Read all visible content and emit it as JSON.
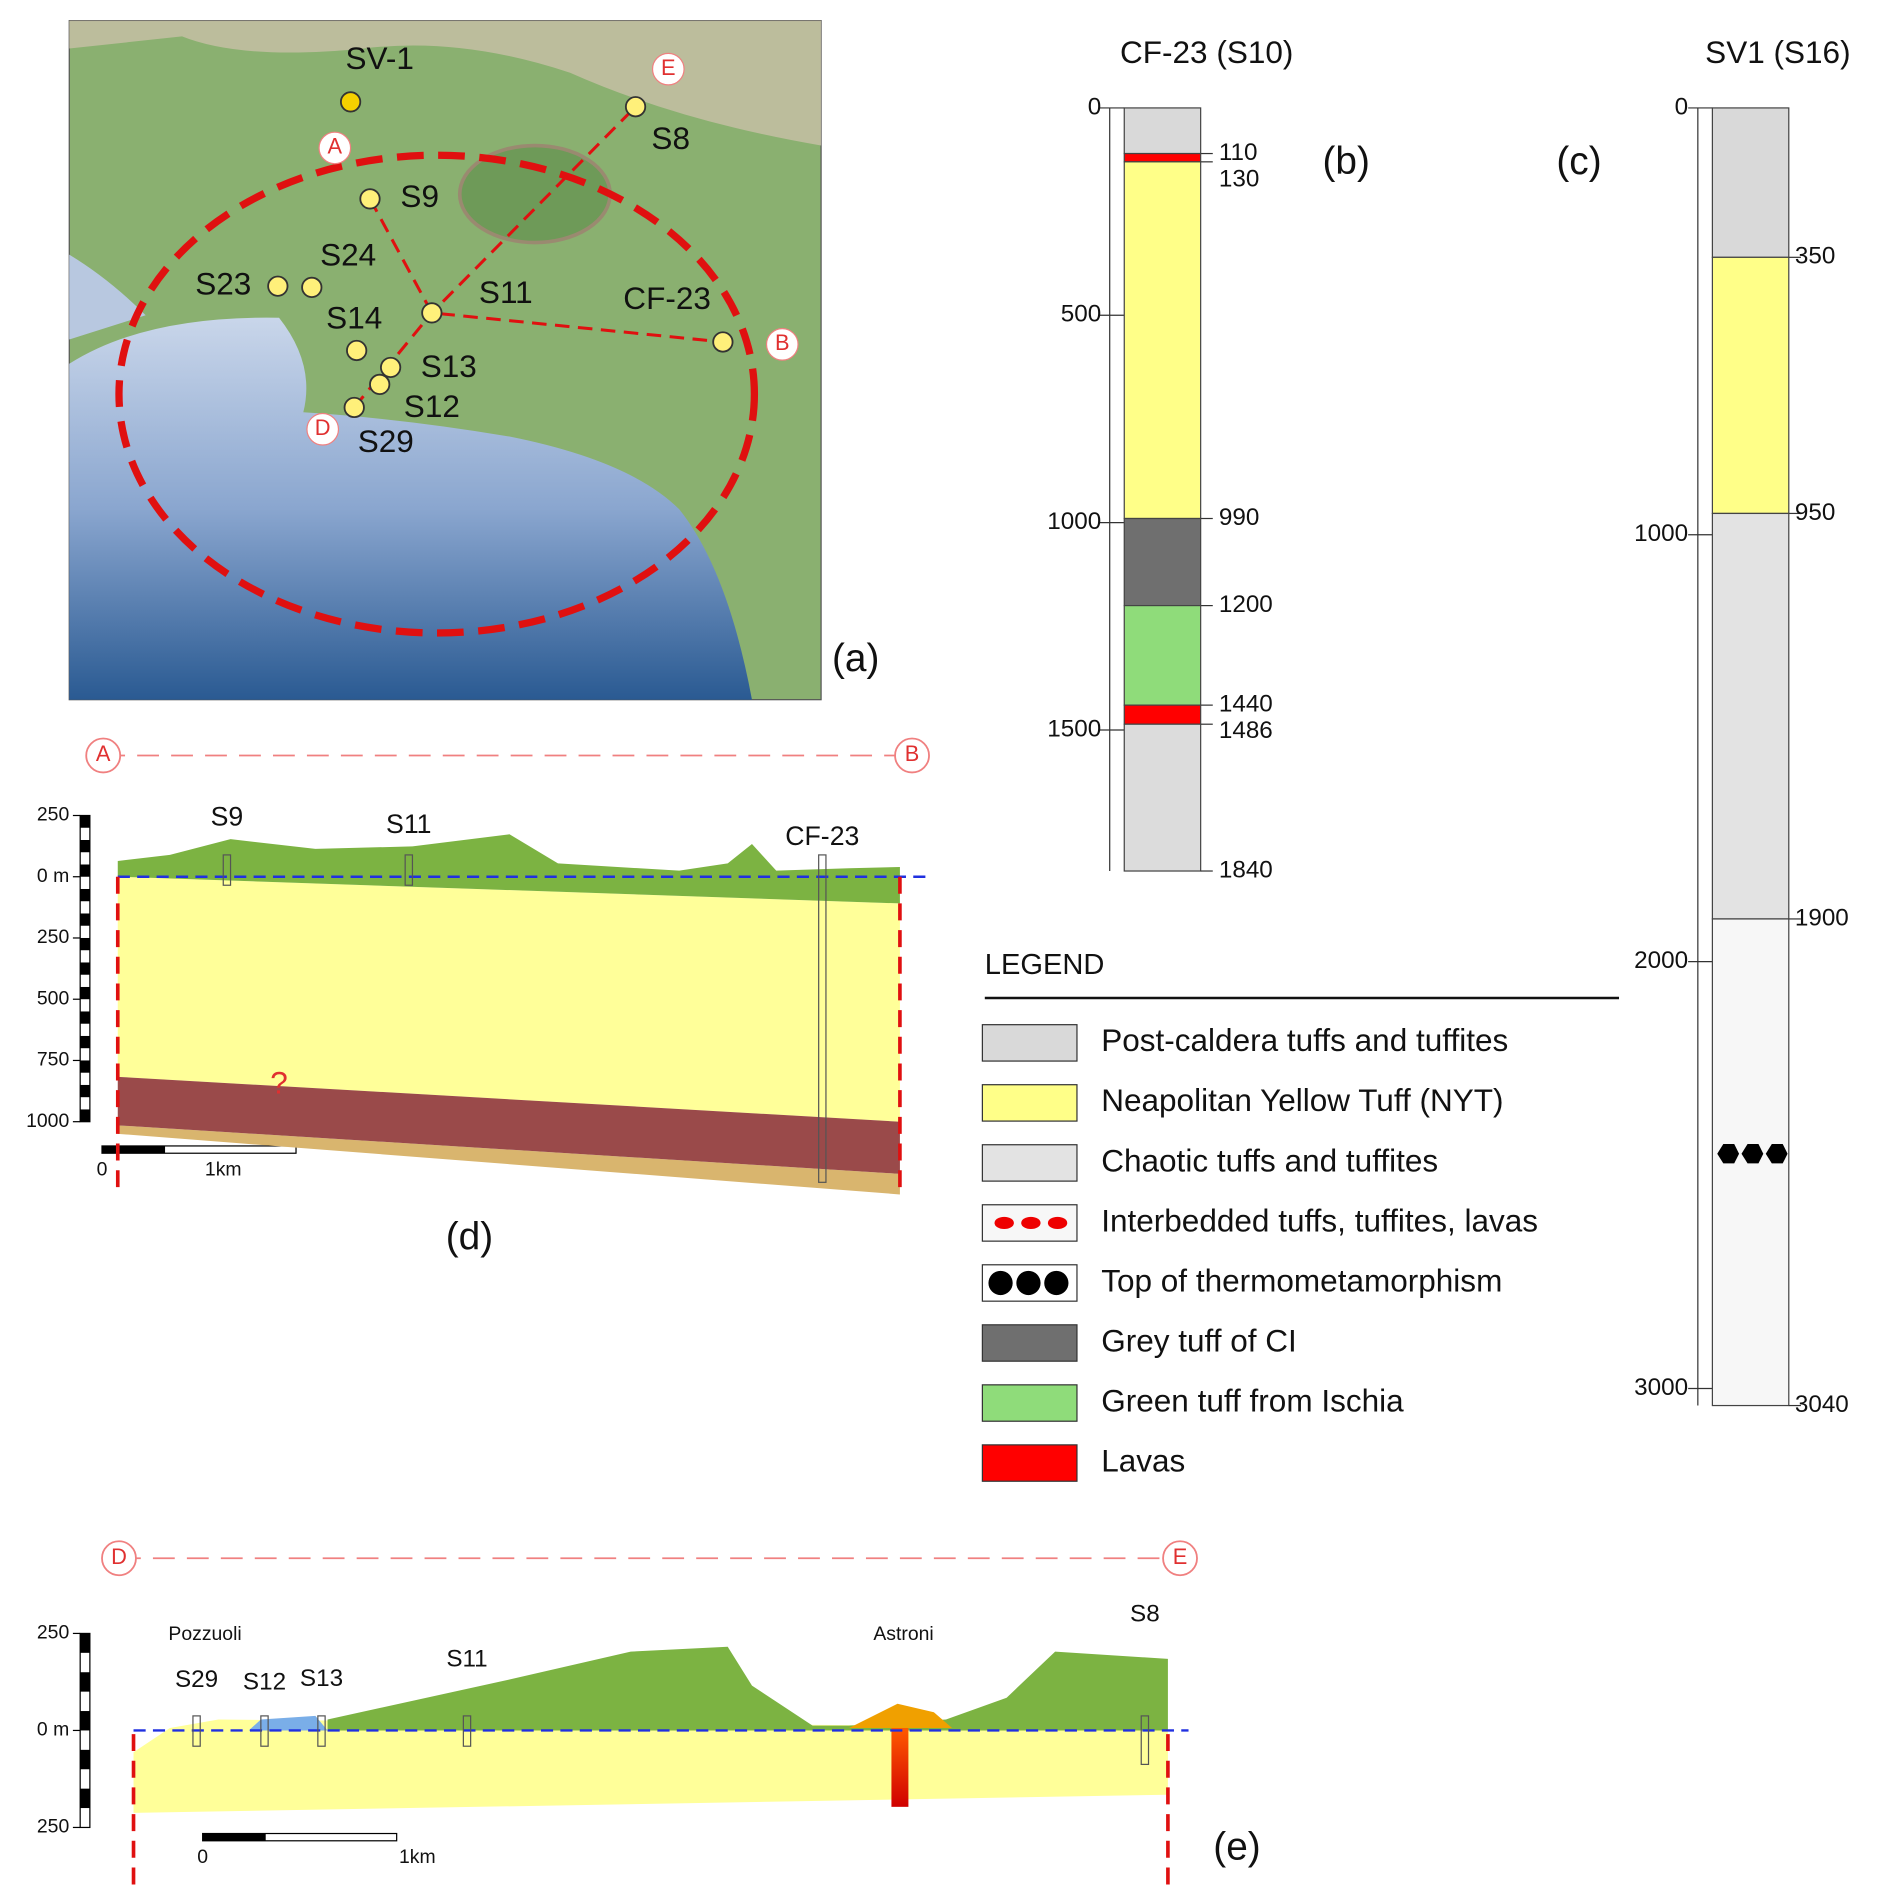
{
  "map": {
    "panel": "(a)",
    "wells": [
      "SV-1",
      "S8",
      "S9",
      "S24",
      "S23",
      "S11",
      "CF-23",
      "S14",
      "S13",
      "S12",
      "S29"
    ],
    "section_points": [
      "A",
      "B",
      "D",
      "E"
    ]
  },
  "log_b": {
    "panel": "(b)",
    "title": "CF-23 (S10)",
    "ylim": [
      0,
      1840
    ],
    "yticks": [
      0,
      500,
      1000,
      1500
    ],
    "boundaries": [
      110,
      130,
      990,
      1200,
      1440,
      1486,
      1840
    ],
    "colors": [
      "#d9d9d9",
      "#ff0000",
      "#ffff88",
      "#6f6f6f",
      "#8fdc7a",
      "#ff0000",
      "#dcdcdc"
    ]
  },
  "log_c": {
    "panel": "(c)",
    "title": "SV1 (S16)",
    "ylim": [
      0,
      3040
    ],
    "yticks": [
      0,
      1000,
      2000,
      3000
    ],
    "boundaries": [
      350,
      950,
      1900,
      3040
    ],
    "colors": [
      "#d9d9d9",
      "#ffff88",
      "#e3e3e3",
      "#f7f7f7"
    ]
  },
  "legend": {
    "title": "LEGEND",
    "items": [
      {
        "label": "Post-caldera tuffs and tuffites",
        "color": "#d9d9d9"
      },
      {
        "label": "Neapolitan Yellow Tuff (NYT)",
        "color": "#ffff88"
      },
      {
        "label": "Chaotic tuffs and tuffites",
        "color": "#e3e3e3"
      },
      {
        "label": "Interbedded tuffs, tuffites, lavas",
        "color": "#f7f7f7"
      },
      {
        "label": "Top of thermometamorphism",
        "color": "#ffffff"
      },
      {
        "label": "Grey tuff of CI",
        "color": "#6f6f6f"
      },
      {
        "label": "Green tuff from Ischia",
        "color": "#8fdc7a"
      },
      {
        "label": "Lavas",
        "color": "#ff0000"
      }
    ]
  },
  "section_d": {
    "panel": "(d)",
    "ends": [
      "A",
      "B"
    ],
    "ylim": [
      -1000,
      250
    ],
    "yticks": [
      {
        "value": 250,
        "label": "250"
      },
      {
        "value": 0,
        "label": "0 m"
      },
      {
        "value": -250,
        "label": "250"
      },
      {
        "value": -500,
        "label": "500"
      },
      {
        "value": -750,
        "label": "750"
      },
      {
        "value": -1000,
        "label": "1000"
      }
    ],
    "wells": [
      "S9",
      "S11",
      "CF-23"
    ],
    "annotation": "?",
    "scale": [
      "0",
      "1km"
    ]
  },
  "section_e": {
    "panel": "(e)",
    "ends": [
      "D",
      "E"
    ],
    "ylim": [
      -250,
      250
    ],
    "yticks": [
      {
        "value": 250,
        "label": "250"
      },
      {
        "value": 0,
        "label": "0 m"
      },
      {
        "value": -250,
        "label": "250"
      }
    ],
    "wells": [
      "S29",
      "S12",
      "S13",
      "S11",
      "S8"
    ],
    "places": [
      "Pozzuoli",
      "Astroni"
    ],
    "scale": [
      "0",
      "1km"
    ]
  }
}
